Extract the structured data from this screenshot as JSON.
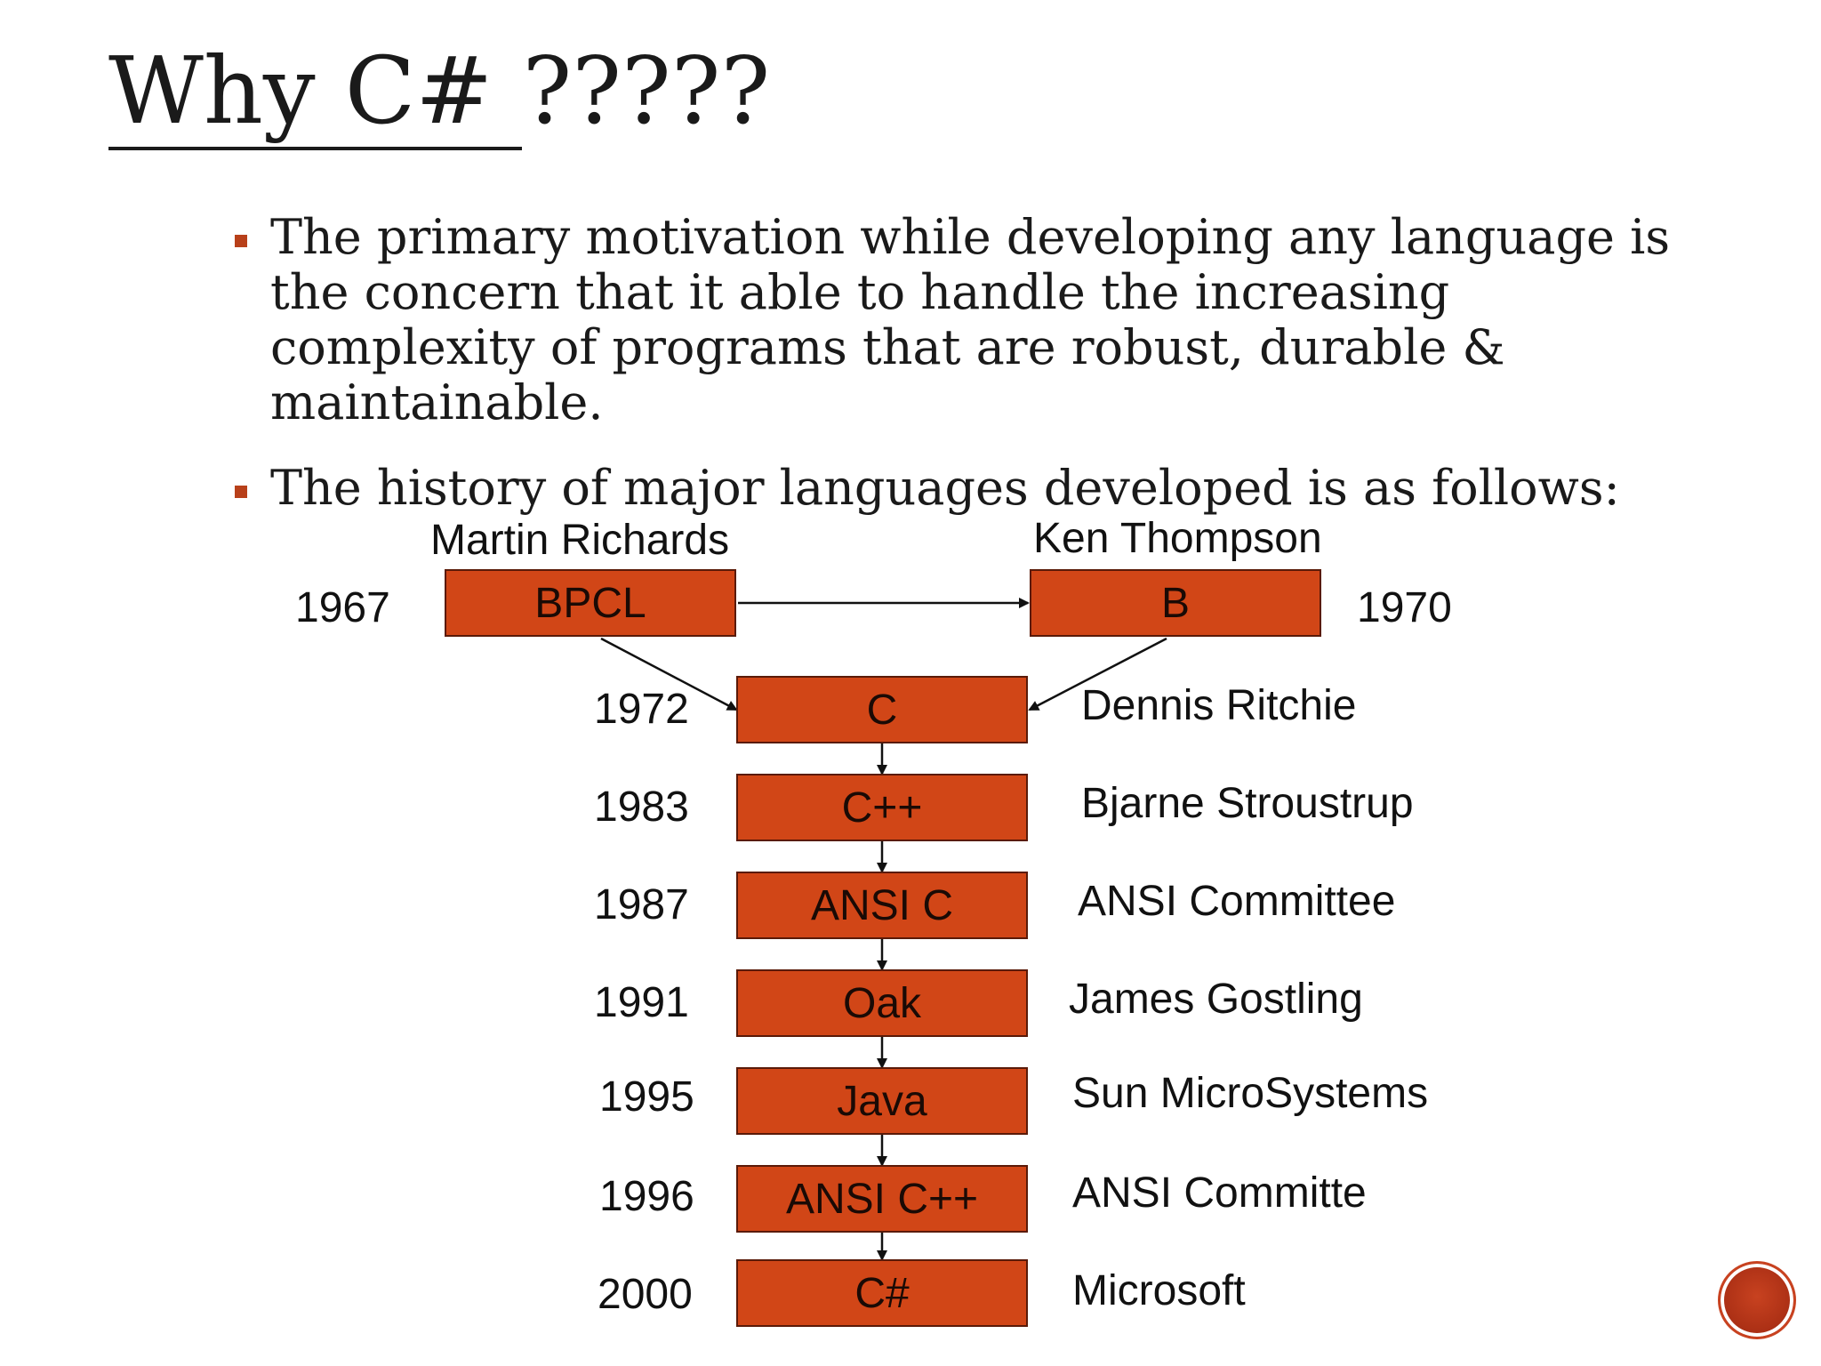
{
  "slide": {
    "title_main": "Why C# ",
    "title_suffix": "?????",
    "bullets": [
      "The primary motivation while developing any language is the concern that it able to handle the increasing complexity of programs that are robust, durable & maintainable.",
      "The history of major languages developed is as follows:"
    ]
  },
  "diagram": {
    "top": [
      {
        "name": "BPCL",
        "year": "1967",
        "author": "Martin Richards"
      },
      {
        "name": "B",
        "year": "1970",
        "author": "Ken Thompson"
      }
    ],
    "chain": [
      {
        "name": "C",
        "year": "1972",
        "author": "Dennis Ritchie"
      },
      {
        "name": "C++",
        "year": "1983",
        "author": "Bjarne Stroustrup"
      },
      {
        "name": "ANSI C",
        "year": "1987",
        "author": "ANSI Committee"
      },
      {
        "name": "Oak",
        "year": "1991",
        "author": "James Gostling"
      },
      {
        "name": "Java",
        "year": "1995",
        "author": "Sun MicroSystems"
      },
      {
        "name": "ANSI C++",
        "year": "1996",
        "author": "ANSI Committe"
      },
      {
        "name": "C#",
        "year": "2000",
        "author": "Microsoft"
      }
    ]
  }
}
